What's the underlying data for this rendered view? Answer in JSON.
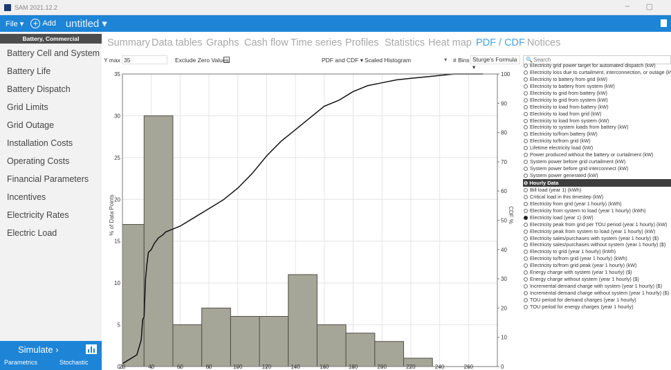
{
  "window": {
    "title": "SAM 2021.12.2",
    "minimize": "–",
    "maximize": "▢"
  },
  "menubar": {
    "file": "File ▾",
    "add": "Add",
    "add_icon": "+",
    "document": "untitled ▾"
  },
  "sidebar": {
    "header": "Battery, Commercial",
    "items": [
      "Battery Cell and System",
      "Battery Life",
      "Battery Dispatch",
      "Grid Limits",
      "Grid Outage",
      "Installation Costs",
      "Operating Costs",
      "Financial Parameters",
      "Incentives",
      "Electricity Rates",
      "Electric Load"
    ],
    "simulate": "Simulate ›",
    "parametrics": "Parametrics",
    "stochastic": "Stochastic"
  },
  "tabs": [
    "Summary",
    "Data tables",
    "Graphs",
    "Cash flow",
    "Time series",
    "Profiles",
    "Statistics",
    "Heat map",
    "PDF / CDF",
    "Notices"
  ],
  "active_tab": "PDF / CDF",
  "toolbar": {
    "ymax_label": "Y max",
    "ymax_value": "35",
    "exclude_zero": "Exclude Zero Values",
    "pdf_mode": "PDF and CDF  ▾",
    "scaled": "Scaled Histogram",
    "scaled_chevron": "▾",
    "bins_label": "# Bins",
    "bins_value": "Sturge's Formula  ▾"
  },
  "variables": {
    "search_placeholder": "Search",
    "search_icon": "🔍",
    "list": [
      {
        "label": "Electricity grid power target for automated dispatch (kW)",
        "selected": false
      },
      {
        "label": "Electricity loss due to curtailment, interconnection, or outage (kW)",
        "selected": false
      },
      {
        "label": "Electricity to battery from grid (kW)",
        "selected": false
      },
      {
        "label": "Electricity to battery from system (kW)",
        "selected": false
      },
      {
        "label": "Electricity to grid from battery (kW)",
        "selected": false
      },
      {
        "label": "Electricity to grid from system (kW)",
        "selected": false
      },
      {
        "label": "Electricity to load from battery (kW)",
        "selected": false
      },
      {
        "label": "Electricity to load from grid (kW)",
        "selected": false
      },
      {
        "label": "Electricity to load from system (kW)",
        "selected": false
      },
      {
        "label": "Electricity to system loads from battery (kW)",
        "selected": false
      },
      {
        "label": "Electricity to/from battery (kW)",
        "selected": false
      },
      {
        "label": "Electricity to/from grid (kW)",
        "selected": false
      },
      {
        "label": "Lifetime electricity load (kW)",
        "selected": false
      },
      {
        "label": "Power produced without the battery or curtailment (kW)",
        "selected": false
      },
      {
        "label": "System power before grid curtailment (kW)",
        "selected": false
      },
      {
        "label": "System power before grid interconnect (kW)",
        "selected": false
      },
      {
        "label": "System power generated (kW)",
        "selected": false
      },
      {
        "label": "Hourly Data",
        "header": true
      },
      {
        "label": "Bill load (year 1) (kWh)",
        "selected": false
      },
      {
        "label": "Critical load in this timestep (kW)",
        "selected": false
      },
      {
        "label": "Electricity from grid (year 1 hourly) (kWh)",
        "selected": false
      },
      {
        "label": "Electricity from system to load (year 1 hourly) (kWh)",
        "selected": false
      },
      {
        "label": "Electricity load (year 1) (kW)",
        "selected": true
      },
      {
        "label": "Electricity peak from grid per TOU period (year 1 hourly) (kW)",
        "selected": false
      },
      {
        "label": "Electricity peak from system to load (year 1 hourly) (kW)",
        "selected": false
      },
      {
        "label": "Electricity sales/purchases with system (year 1 hourly) ($)",
        "selected": false
      },
      {
        "label": "Electricity sales/purchases without system (year 1 hourly) ($)",
        "selected": false
      },
      {
        "label": "Electricity to grid (year 1 hourly) (kWh)",
        "selected": false
      },
      {
        "label": "Electricity to/from grid (year 1 hourly) (kWh)",
        "selected": false
      },
      {
        "label": "Electricity to/from grid peak (year 1 hourly) (kW)",
        "selected": false
      },
      {
        "label": "Energy charge with system (year 1 hourly) ($)",
        "selected": false
      },
      {
        "label": "Energy charge without system (year 1 hourly) ($)",
        "selected": false
      },
      {
        "label": "Incremental demand charge with system (year 1 hourly) ($)",
        "selected": false
      },
      {
        "label": "Incremental demand charge without system (year 1 hourly) ($)",
        "selected": false
      },
      {
        "label": "TOU period for demand charges (year 1 hourly)",
        "selected": false
      },
      {
        "label": "TOU period for energy charges (year 1 hourly)",
        "selected": false
      }
    ]
  },
  "colors": {
    "accent": "#1d84d6",
    "bar_fill": "#a6a698",
    "bar_stroke": "#4f4f47",
    "cdf_line": "#111111"
  },
  "chart_data": {
    "type": "bar",
    "xlim": [
      20,
      280
    ],
    "ylim": [
      0,
      35
    ],
    "y2lim": [
      0,
      100
    ],
    "xticks": [
      20,
      40,
      60,
      80,
      100,
      120,
      140,
      160,
      180,
      200,
      220,
      240,
      260
    ],
    "yticks": [
      0,
      5,
      10,
      15,
      20,
      25,
      30,
      35
    ],
    "y2ticks": [
      0,
      10,
      20,
      30,
      40,
      50,
      60,
      70,
      80,
      90,
      100
    ],
    "ylabel": "% of Data Points",
    "y2label": "CDF %",
    "grid": true,
    "bins": [
      {
        "x0": 20,
        "x1": 35,
        "value": 17
      },
      {
        "x0": 35,
        "x1": 55,
        "value": 30
      },
      {
        "x0": 55,
        "x1": 75,
        "value": 5
      },
      {
        "x0": 75,
        "x1": 95,
        "value": 7
      },
      {
        "x0": 95,
        "x1": 115,
        "value": 6
      },
      {
        "x0": 115,
        "x1": 135,
        "value": 6
      },
      {
        "x0": 135,
        "x1": 155,
        "value": 11
      },
      {
        "x0": 155,
        "x1": 175,
        "value": 5
      },
      {
        "x0": 175,
        "x1": 195,
        "value": 4
      },
      {
        "x0": 195,
        "x1": 215,
        "value": 3
      },
      {
        "x0": 215,
        "x1": 235,
        "value": 1
      }
    ],
    "cdf": {
      "name": "CDF",
      "x": [
        20,
        30,
        33,
        34,
        35,
        36,
        37,
        38,
        40,
        42,
        45,
        48,
        50,
        55,
        60,
        70,
        80,
        90,
        100,
        110,
        120,
        130,
        140,
        150,
        160,
        170,
        180,
        190,
        200,
        210,
        220,
        230,
        240,
        250,
        260,
        270
      ],
      "y": [
        1,
        4,
        9,
        16,
        17,
        30,
        35,
        39,
        40,
        42,
        44,
        45,
        46,
        47,
        48,
        51,
        54,
        57,
        61,
        66,
        72,
        77,
        81,
        85,
        89,
        91,
        94,
        96,
        97,
        98,
        98.5,
        99,
        99.5,
        100,
        100,
        100
      ]
    }
  }
}
